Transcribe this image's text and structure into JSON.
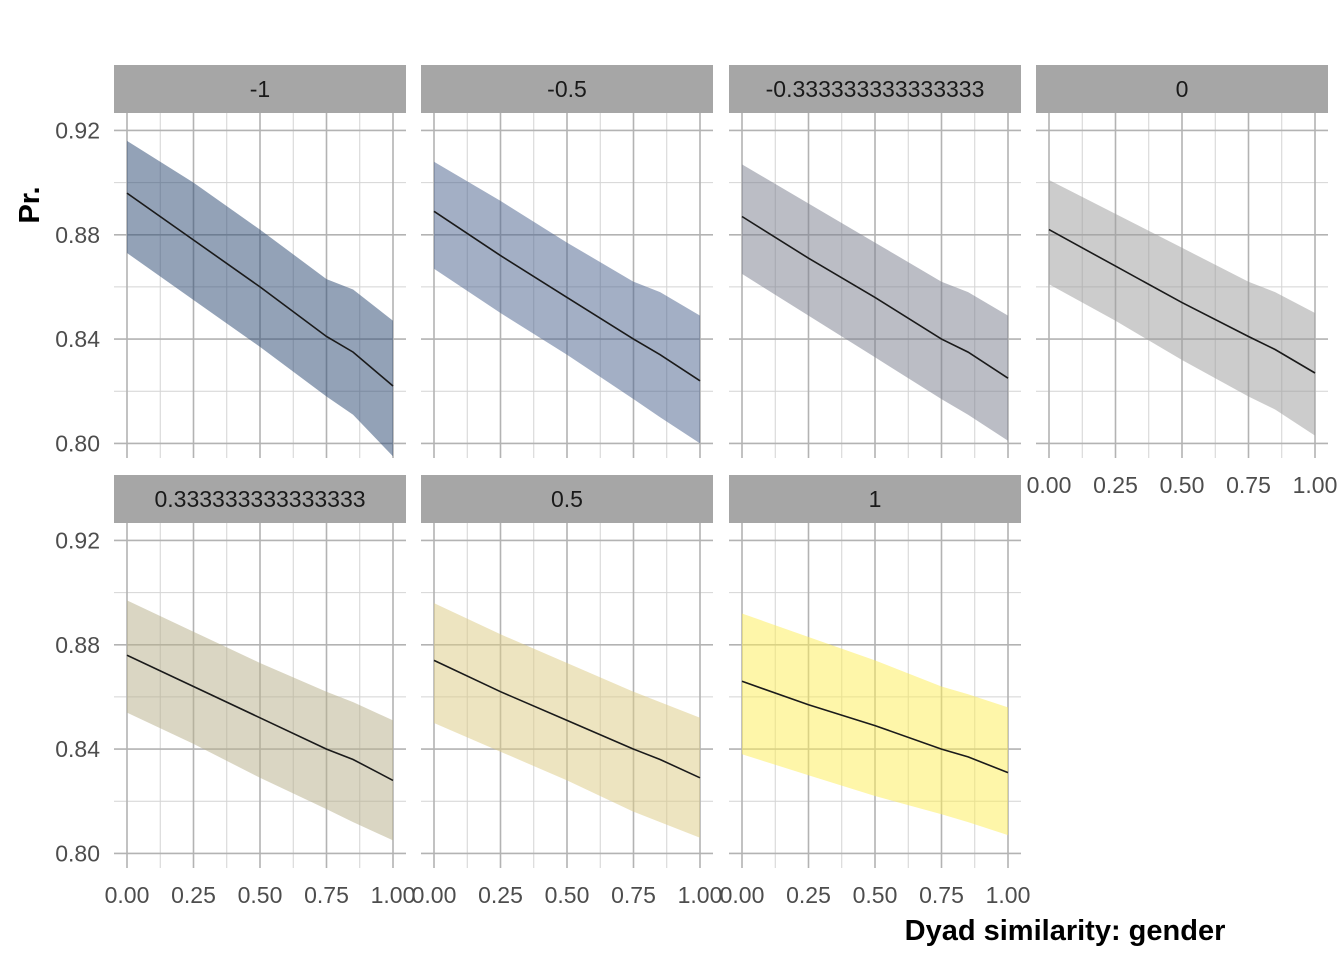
{
  "chart_data": {
    "type": "line",
    "facet_layout": "wrap",
    "xlabel": "Dyad similarity: gender",
    "ylabel": "Pr.",
    "xlim": [
      0,
      1
    ],
    "ylim": [
      0.79,
      0.93
    ],
    "x_ticks": [
      "0.00",
      "0.25",
      "0.50",
      "0.75",
      "1.00"
    ],
    "y_ticks": [
      "0.80",
      "0.84",
      "0.88",
      "0.92"
    ],
    "grid": true,
    "legend": "none",
    "panels": [
      {
        "label": "-1",
        "color": "#2f4c74",
        "fill_opacity": 0.52,
        "x": [
          0,
          0.25,
          0.5,
          0.75,
          0.85,
          1
        ],
        "y": [
          0.896,
          0.878,
          0.86,
          0.841,
          0.835,
          0.822
        ],
        "lower": [
          0.873,
          0.855,
          0.837,
          0.818,
          0.811,
          0.795
        ],
        "upper": [
          0.916,
          0.9,
          0.882,
          0.863,
          0.859,
          0.847
        ]
      },
      {
        "label": "-0.5",
        "color": "#4f6690",
        "fill_opacity": 0.52,
        "x": [
          0,
          0.25,
          0.5,
          0.75,
          0.85,
          1
        ],
        "y": [
          0.889,
          0.872,
          0.856,
          0.84,
          0.834,
          0.824
        ],
        "lower": [
          0.867,
          0.85,
          0.834,
          0.817,
          0.81,
          0.8
        ],
        "upper": [
          0.908,
          0.893,
          0.877,
          0.862,
          0.858,
          0.849
        ]
      },
      {
        "label": "-0.333333333333333",
        "color": "#7c8090",
        "fill_opacity": 0.52,
        "x": [
          0,
          0.25,
          0.5,
          0.75,
          0.85,
          1
        ],
        "y": [
          0.887,
          0.871,
          0.856,
          0.84,
          0.835,
          0.825
        ],
        "lower": [
          0.865,
          0.849,
          0.833,
          0.817,
          0.811,
          0.801
        ],
        "upper": [
          0.907,
          0.892,
          0.877,
          0.862,
          0.858,
          0.849
        ]
      },
      {
        "label": "0",
        "color": "#9e9e9e",
        "fill_opacity": 0.52,
        "x": [
          0,
          0.25,
          0.5,
          0.75,
          0.85,
          1
        ],
        "y": [
          0.882,
          0.868,
          0.854,
          0.841,
          0.836,
          0.827
        ],
        "lower": [
          0.861,
          0.847,
          0.832,
          0.818,
          0.813,
          0.803
        ],
        "upper": [
          0.901,
          0.888,
          0.875,
          0.862,
          0.858,
          0.85
        ]
      },
      {
        "label": "0.333333333333333",
        "color": "#b8b08c",
        "fill_opacity": 0.52,
        "x": [
          0,
          0.25,
          0.5,
          0.75,
          0.85,
          1
        ],
        "y": [
          0.876,
          0.864,
          0.852,
          0.84,
          0.836,
          0.828
        ],
        "lower": [
          0.854,
          0.842,
          0.829,
          0.817,
          0.812,
          0.805
        ],
        "upper": [
          0.897,
          0.885,
          0.873,
          0.862,
          0.858,
          0.851
        ]
      },
      {
        "label": "0.5",
        "color": "#dccc86",
        "fill_opacity": 0.52,
        "x": [
          0,
          0.25,
          0.5,
          0.75,
          0.85,
          1
        ],
        "y": [
          0.874,
          0.862,
          0.851,
          0.84,
          0.836,
          0.829
        ],
        "lower": [
          0.85,
          0.839,
          0.828,
          0.816,
          0.812,
          0.806
        ],
        "upper": [
          0.896,
          0.884,
          0.873,
          0.862,
          0.858,
          0.852
        ]
      },
      {
        "label": "1",
        "color": "#fdee5a",
        "fill_opacity": 0.52,
        "x": [
          0,
          0.25,
          0.5,
          0.75,
          0.85,
          1
        ],
        "y": [
          0.866,
          0.857,
          0.849,
          0.84,
          0.837,
          0.831
        ],
        "lower": [
          0.838,
          0.83,
          0.822,
          0.815,
          0.812,
          0.807
        ],
        "upper": [
          0.892,
          0.883,
          0.874,
          0.864,
          0.861,
          0.856
        ]
      }
    ]
  }
}
